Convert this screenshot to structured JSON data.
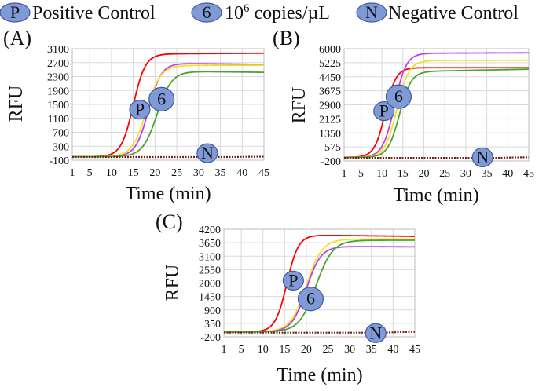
{
  "legend": {
    "positive_badge": "P",
    "positive_label": "Positive Control",
    "copies_badge": "6",
    "copies_base": "10",
    "copies_exp": "6",
    "copies_unit": " copies/µL",
    "negative_badge": "N",
    "negative_label": "Negative  Control"
  },
  "colors": {
    "positive": "#d62916",
    "purple": "#c13fe6",
    "yellow": "#f2e227",
    "green": "#4aa52e",
    "negative": "#7a1a14",
    "badge_fill": "#7f9ad6"
  },
  "chart_data": [
    {
      "type": "line",
      "panel_label": "(A)",
      "xlabel": "Time (min)",
      "ylabel": "RFU",
      "xlim": [
        1,
        45
      ],
      "ylim": [
        -100,
        3100
      ],
      "xticks": [
        "1",
        "5",
        "10",
        "15",
        "20",
        "25",
        "30",
        "35",
        "40",
        "45"
      ],
      "yticks": [
        "3100",
        "2700",
        "2300",
        "1900",
        "1500",
        "1100",
        "700",
        "300",
        "-100"
      ],
      "annotations": [
        {
          "badge": "P",
          "x": 16.5,
          "y": 1350
        },
        {
          "badge": "6",
          "x": 21.5,
          "y": 1650
        },
        {
          "badge": "N",
          "x": 32,
          "y": 100
        }
      ],
      "series": [
        {
          "name": "Positive Control",
          "color": "red",
          "baseline": 0,
          "plateau": 2950,
          "midpoint": 15.0,
          "steepness": 0.72,
          "drift": 0.8
        },
        {
          "name": "10^6 copies/uL (purple)",
          "color": "purple",
          "baseline": 0,
          "plateau": 2680,
          "midpoint": 18.5,
          "steepness": 0.68,
          "drift": -1.5
        },
        {
          "name": "10^6 copies/uL (yellow)",
          "color": "yellow",
          "baseline": 0,
          "plateau": 2620,
          "midpoint": 18.0,
          "steepness": 0.62,
          "drift": 0.2
        },
        {
          "name": "10^6 copies/uL (green)",
          "color": "green",
          "baseline": 0,
          "plateau": 2450,
          "midpoint": 20.5,
          "steepness": 0.6,
          "drift": -1.5
        },
        {
          "name": "Negative Control",
          "color": "negative",
          "baseline": -10,
          "plateau": 0,
          "midpoint": 40,
          "steepness": 1,
          "drift": 0
        }
      ]
    },
    {
      "type": "line",
      "panel_label": "(B)",
      "xlabel": "Time (min)",
      "ylabel": "RFU",
      "xlim": [
        1,
        45
      ],
      "ylim": [
        -200,
        6000
      ],
      "xticks": [
        "1",
        "5",
        "10",
        "15",
        "20",
        "25",
        "30",
        "35",
        "40",
        "45"
      ],
      "yticks": [
        "6000",
        "5225",
        "4450",
        "3675",
        "2900",
        "2125",
        "1350",
        "575",
        "-200"
      ],
      "annotations": [
        {
          "badge": "P",
          "x": 10.5,
          "y": 2550
        },
        {
          "badge": "6",
          "x": 14,
          "y": 3350
        },
        {
          "badge": "N",
          "x": 34,
          "y": 0
        }
      ],
      "series": [
        {
          "name": "Positive Control",
          "color": "red",
          "baseline": 0,
          "plateau": 4950,
          "midpoint": 10.8,
          "steepness": 0.78,
          "drift": 0
        },
        {
          "name": "10^6 copies/uL (purple)",
          "color": "purple",
          "baseline": 0,
          "plateau": 5750,
          "midpoint": 13.0,
          "steepness": 0.72,
          "drift": 0.8
        },
        {
          "name": "10^6 copies/uL (yellow)",
          "color": "yellow",
          "baseline": 0,
          "plateau": 5350,
          "midpoint": 13.6,
          "steepness": 0.7,
          "drift": 0.5
        },
        {
          "name": "10^6 copies/uL (green)",
          "color": "green",
          "baseline": 0,
          "plateau": 4750,
          "midpoint": 14.2,
          "steepness": 0.72,
          "drift": 4.5
        },
        {
          "name": "Negative Control",
          "color": "negative",
          "baseline": -30,
          "plateau": 0,
          "midpoint": 40,
          "steepness": 1,
          "drift": 0
        }
      ]
    },
    {
      "type": "line",
      "panel_label": "(C)",
      "xlabel": "Time (min)",
      "ylabel": "RFU",
      "xlim": [
        1,
        45
      ],
      "ylim": [
        -200,
        4200
      ],
      "xticks": [
        "1",
        "5",
        "10",
        "15",
        "20",
        "25",
        "30",
        "35",
        "40",
        "45"
      ],
      "yticks": [
        "4200",
        "3650",
        "3100",
        "2550",
        "2000",
        "1450",
        "900",
        "350",
        "-200"
      ],
      "annotations": [
        {
          "badge": "P",
          "x": 17,
          "y": 2100
        },
        {
          "badge": "6",
          "x": 21,
          "y": 1350
        },
        {
          "badge": "N",
          "x": 36,
          "y": -50
        }
      ],
      "series": [
        {
          "name": "Positive Control",
          "color": "red",
          "baseline": 0,
          "plateau": 3960,
          "midpoint": 15.5,
          "steepness": 0.75,
          "drift": -2
        },
        {
          "name": "10^6 copies/uL (yellow)",
          "color": "yellow",
          "baseline": 0,
          "plateau": 3800,
          "midpoint": 20.0,
          "steepness": 0.55,
          "drift": 0
        },
        {
          "name": "10^6 copies/uL (purple)",
          "color": "purple",
          "baseline": 0,
          "plateau": 3500,
          "midpoint": 20.0,
          "steepness": 0.6,
          "drift": -1
        },
        {
          "name": "10^6 copies/uL (green)",
          "color": "green",
          "baseline": 0,
          "plateau": 3750,
          "midpoint": 22.2,
          "steepness": 0.52,
          "drift": 0
        },
        {
          "name": "Negative Control",
          "color": "negative",
          "baseline": -30,
          "plateau": 0,
          "midpoint": 40,
          "steepness": 1,
          "drift": 0
        }
      ]
    }
  ]
}
